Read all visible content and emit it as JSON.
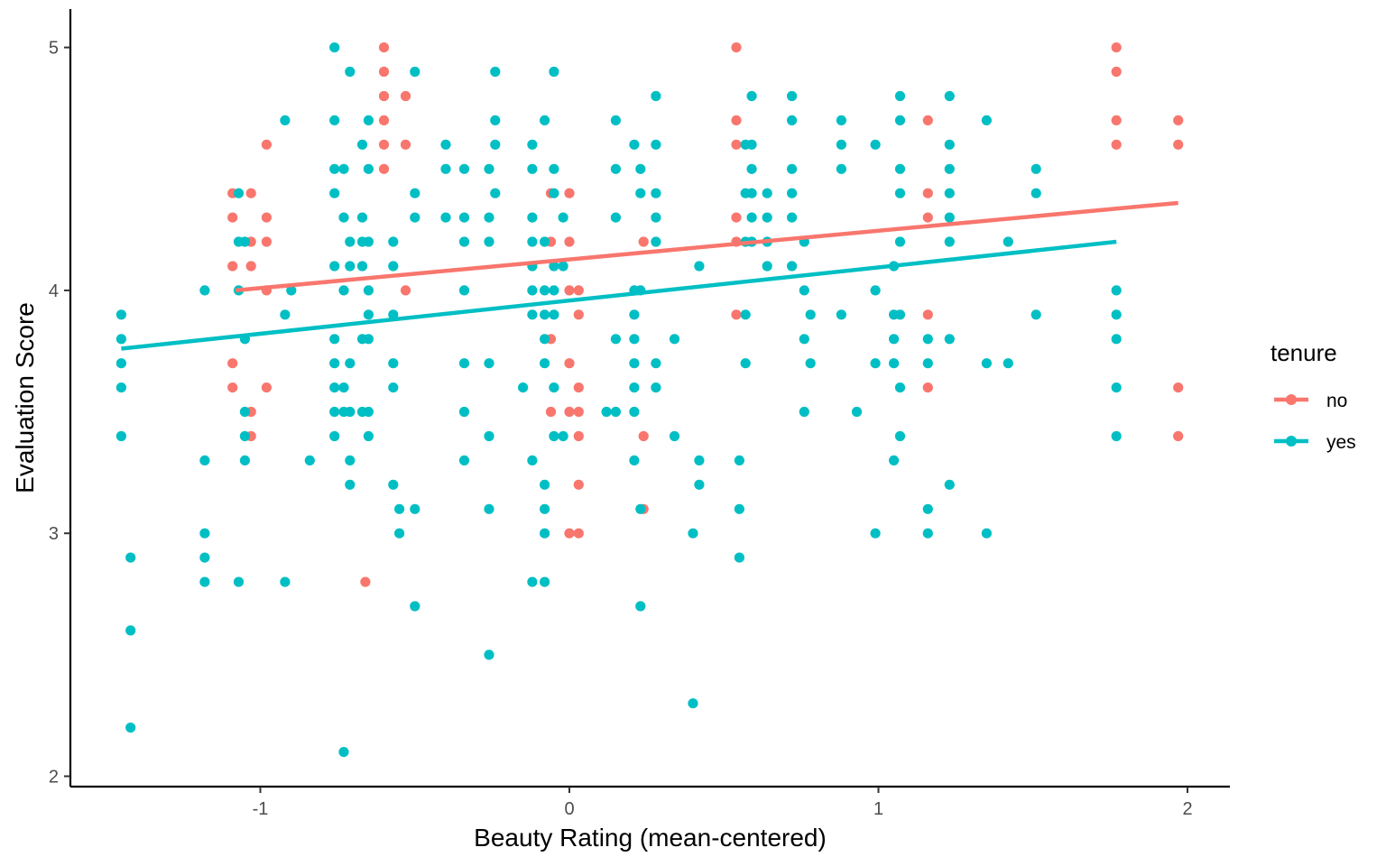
{
  "chart_data": {
    "type": "scatter",
    "xlabel": "Beauty Rating (mean-centered)",
    "ylabel": "Evaluation Score",
    "xlim": [
      -1.6,
      2.15
    ],
    "ylim": [
      1.97,
      5.15
    ],
    "xticks": [
      -1,
      0,
      1,
      2
    ],
    "yticks": [
      2,
      3,
      4,
      5
    ],
    "grid": false,
    "legend": {
      "title": "tenure",
      "position": "right"
    },
    "colors": {
      "no": "#F8766D",
      "yes": "#00BFC4"
    },
    "series": [
      {
        "name": "no",
        "color": "#F8766D",
        "points": [
          [
            -1.09,
            4.4
          ],
          [
            -1.09,
            4.3
          ],
          [
            -1.09,
            4.1
          ],
          [
            -1.09,
            3.7
          ],
          [
            -1.09,
            3.6
          ],
          [
            -1.03,
            4.4
          ],
          [
            -1.03,
            4.2
          ],
          [
            -1.03,
            4.1
          ],
          [
            -1.03,
            3.5
          ],
          [
            -1.03,
            3.4
          ],
          [
            -0.98,
            4.6
          ],
          [
            -0.98,
            4.3
          ],
          [
            -0.98,
            4.2
          ],
          [
            -0.98,
            4.0
          ],
          [
            -0.98,
            3.6
          ],
          [
            -0.66,
            2.8
          ],
          [
            -0.6,
            5.0
          ],
          [
            -0.6,
            4.9
          ],
          [
            -0.6,
            4.8
          ],
          [
            -0.6,
            4.7
          ],
          [
            -0.6,
            4.6
          ],
          [
            -0.6,
            4.5
          ],
          [
            -0.53,
            4.8
          ],
          [
            -0.53,
            4.6
          ],
          [
            -0.53,
            4.0
          ],
          [
            -0.06,
            4.4
          ],
          [
            -0.06,
            4.2
          ],
          [
            -0.06,
            3.8
          ],
          [
            -0.06,
            3.5
          ],
          [
            0.0,
            4.4
          ],
          [
            0.0,
            4.2
          ],
          [
            0.0,
            4.0
          ],
          [
            0.0,
            3.7
          ],
          [
            0.0,
            3.5
          ],
          [
            0.0,
            3.0
          ],
          [
            0.03,
            4.0
          ],
          [
            0.03,
            3.9
          ],
          [
            0.03,
            3.6
          ],
          [
            0.03,
            3.5
          ],
          [
            0.03,
            3.4
          ],
          [
            0.03,
            3.2
          ],
          [
            0.03,
            3.0
          ],
          [
            0.24,
            4.2
          ],
          [
            0.24,
            3.4
          ],
          [
            0.24,
            3.1
          ],
          [
            0.54,
            5.0
          ],
          [
            0.54,
            4.7
          ],
          [
            0.54,
            4.6
          ],
          [
            0.54,
            4.3
          ],
          [
            0.54,
            4.2
          ],
          [
            0.54,
            3.9
          ],
          [
            1.16,
            4.7
          ],
          [
            1.16,
            4.4
          ],
          [
            1.16,
            4.3
          ],
          [
            1.16,
            3.9
          ],
          [
            1.16,
            3.6
          ],
          [
            1.77,
            5.0
          ],
          [
            1.77,
            4.9
          ],
          [
            1.77,
            4.7
          ],
          [
            1.77,
            4.6
          ],
          [
            1.97,
            4.7
          ],
          [
            1.97,
            4.6
          ],
          [
            1.97,
            3.6
          ],
          [
            1.97,
            3.4
          ]
        ],
        "fit": [
          [
            -1.08,
            4.0
          ],
          [
            1.97,
            4.36
          ]
        ]
      },
      {
        "name": "yes",
        "color": "#00BFC4",
        "points": [
          [
            -1.45,
            3.9
          ],
          [
            -1.45,
            3.8
          ],
          [
            -1.45,
            3.7
          ],
          [
            -1.45,
            3.6
          ],
          [
            -1.45,
            3.4
          ],
          [
            -1.42,
            2.9
          ],
          [
            -1.42,
            2.6
          ],
          [
            -1.42,
            2.2
          ],
          [
            -1.18,
            4.0
          ],
          [
            -1.18,
            3.3
          ],
          [
            -1.18,
            3.0
          ],
          [
            -1.18,
            2.9
          ],
          [
            -1.18,
            2.8
          ],
          [
            -1.07,
            4.4
          ],
          [
            -1.07,
            4.2
          ],
          [
            -1.07,
            4.0
          ],
          [
            -1.07,
            2.8
          ],
          [
            -1.05,
            4.2
          ],
          [
            -1.05,
            3.8
          ],
          [
            -1.05,
            3.5
          ],
          [
            -1.05,
            3.4
          ],
          [
            -1.05,
            3.3
          ],
          [
            -0.92,
            4.7
          ],
          [
            -0.92,
            3.9
          ],
          [
            -0.92,
            2.8
          ],
          [
            -0.9,
            4.0
          ],
          [
            -0.84,
            3.3
          ],
          [
            -0.76,
            5.0
          ],
          [
            -0.76,
            4.7
          ],
          [
            -0.76,
            4.5
          ],
          [
            -0.76,
            4.4
          ],
          [
            -0.76,
            4.1
          ],
          [
            -0.76,
            3.8
          ],
          [
            -0.76,
            3.7
          ],
          [
            -0.76,
            3.6
          ],
          [
            -0.76,
            3.5
          ],
          [
            -0.76,
            3.4
          ],
          [
            -0.73,
            4.5
          ],
          [
            -0.73,
            4.3
          ],
          [
            -0.73,
            4.0
          ],
          [
            -0.73,
            3.6
          ],
          [
            -0.73,
            3.5
          ],
          [
            -0.73,
            2.1
          ],
          [
            -0.71,
            4.9
          ],
          [
            -0.71,
            4.2
          ],
          [
            -0.71,
            4.1
          ],
          [
            -0.71,
            3.7
          ],
          [
            -0.71,
            3.5
          ],
          [
            -0.71,
            3.3
          ],
          [
            -0.71,
            3.2
          ],
          [
            -0.67,
            4.6
          ],
          [
            -0.67,
            4.3
          ],
          [
            -0.67,
            4.2
          ],
          [
            -0.67,
            4.1
          ],
          [
            -0.67,
            3.8
          ],
          [
            -0.67,
            3.5
          ],
          [
            -0.65,
            4.7
          ],
          [
            -0.65,
            4.5
          ],
          [
            -0.65,
            4.2
          ],
          [
            -0.65,
            4.0
          ],
          [
            -0.65,
            3.9
          ],
          [
            -0.65,
            3.8
          ],
          [
            -0.65,
            3.5
          ],
          [
            -0.65,
            3.4
          ],
          [
            -0.57,
            4.2
          ],
          [
            -0.57,
            4.1
          ],
          [
            -0.57,
            3.9
          ],
          [
            -0.57,
            3.7
          ],
          [
            -0.57,
            3.6
          ],
          [
            -0.57,
            3.2
          ],
          [
            -0.55,
            3.0
          ],
          [
            -0.55,
            3.1
          ],
          [
            -0.5,
            4.9
          ],
          [
            -0.5,
            4.4
          ],
          [
            -0.5,
            4.3
          ],
          [
            -0.5,
            3.1
          ],
          [
            -0.5,
            2.7
          ],
          [
            -0.4,
            4.6
          ],
          [
            -0.4,
            4.5
          ],
          [
            -0.4,
            4.3
          ],
          [
            -0.34,
            4.5
          ],
          [
            -0.34,
            4.3
          ],
          [
            -0.34,
            4.2
          ],
          [
            -0.34,
            4.0
          ],
          [
            -0.34,
            3.7
          ],
          [
            -0.34,
            3.5
          ],
          [
            -0.34,
            3.3
          ],
          [
            -0.26,
            4.5
          ],
          [
            -0.26,
            4.3
          ],
          [
            -0.26,
            4.2
          ],
          [
            -0.26,
            3.7
          ],
          [
            -0.26,
            3.4
          ],
          [
            -0.26,
            3.1
          ],
          [
            -0.26,
            2.5
          ],
          [
            -0.24,
            4.9
          ],
          [
            -0.24,
            4.7
          ],
          [
            -0.24,
            4.6
          ],
          [
            -0.24,
            4.4
          ],
          [
            -0.15,
            3.6
          ],
          [
            -0.12,
            4.6
          ],
          [
            -0.12,
            4.5
          ],
          [
            -0.12,
            4.3
          ],
          [
            -0.12,
            4.2
          ],
          [
            -0.12,
            4.1
          ],
          [
            -0.12,
            4.0
          ],
          [
            -0.12,
            3.9
          ],
          [
            -0.12,
            3.3
          ],
          [
            -0.12,
            2.8
          ],
          [
            -0.08,
            4.7
          ],
          [
            -0.08,
            4.2
          ],
          [
            -0.08,
            4.0
          ],
          [
            -0.08,
            3.9
          ],
          [
            -0.08,
            3.8
          ],
          [
            -0.08,
            3.7
          ],
          [
            -0.08,
            3.2
          ],
          [
            -0.08,
            3.1
          ],
          [
            -0.08,
            3.0
          ],
          [
            -0.08,
            2.8
          ],
          [
            -0.05,
            4.9
          ],
          [
            -0.05,
            4.5
          ],
          [
            -0.05,
            4.4
          ],
          [
            -0.05,
            4.1
          ],
          [
            -0.05,
            4.0
          ],
          [
            -0.05,
            3.9
          ],
          [
            -0.05,
            3.6
          ],
          [
            -0.05,
            3.4
          ],
          [
            -0.02,
            4.3
          ],
          [
            -0.02,
            4.1
          ],
          [
            -0.02,
            3.4
          ],
          [
            0.15,
            4.7
          ],
          [
            0.15,
            4.5
          ],
          [
            0.15,
            4.3
          ],
          [
            0.15,
            3.8
          ],
          [
            0.15,
            3.5
          ],
          [
            0.12,
            3.5
          ],
          [
            0.21,
            4.6
          ],
          [
            0.21,
            4.0
          ],
          [
            0.21,
            3.9
          ],
          [
            0.21,
            3.8
          ],
          [
            0.21,
            3.7
          ],
          [
            0.21,
            3.6
          ],
          [
            0.21,
            3.5
          ],
          [
            0.21,
            3.3
          ],
          [
            0.23,
            4.5
          ],
          [
            0.23,
            4.4
          ],
          [
            0.23,
            4.0
          ],
          [
            0.23,
            3.1
          ],
          [
            0.23,
            2.7
          ],
          [
            0.28,
            4.8
          ],
          [
            0.28,
            4.6
          ],
          [
            0.28,
            4.4
          ],
          [
            0.28,
            4.3
          ],
          [
            0.28,
            4.2
          ],
          [
            0.28,
            3.7
          ],
          [
            0.28,
            3.6
          ],
          [
            0.34,
            3.8
          ],
          [
            0.34,
            3.4
          ],
          [
            0.4,
            3.0
          ],
          [
            0.4,
            2.3
          ],
          [
            0.42,
            4.1
          ],
          [
            0.42,
            3.3
          ],
          [
            0.42,
            3.2
          ],
          [
            0.55,
            3.3
          ],
          [
            0.55,
            3.1
          ],
          [
            0.55,
            2.9
          ],
          [
            0.57,
            4.6
          ],
          [
            0.57,
            4.4
          ],
          [
            0.57,
            4.2
          ],
          [
            0.57,
            3.9
          ],
          [
            0.57,
            3.7
          ],
          [
            0.59,
            4.8
          ],
          [
            0.59,
            4.6
          ],
          [
            0.59,
            4.5
          ],
          [
            0.59,
            4.4
          ],
          [
            0.59,
            4.3
          ],
          [
            0.59,
            4.2
          ],
          [
            0.64,
            4.4
          ],
          [
            0.64,
            4.3
          ],
          [
            0.64,
            4.2
          ],
          [
            0.64,
            4.1
          ],
          [
            0.72,
            4.8
          ],
          [
            0.72,
            4.7
          ],
          [
            0.72,
            4.5
          ],
          [
            0.72,
            4.4
          ],
          [
            0.72,
            4.3
          ],
          [
            0.72,
            4.1
          ],
          [
            0.76,
            4.2
          ],
          [
            0.76,
            4.0
          ],
          [
            0.76,
            3.8
          ],
          [
            0.76,
            3.5
          ],
          [
            0.78,
            3.9
          ],
          [
            0.78,
            3.7
          ],
          [
            0.88,
            4.7
          ],
          [
            0.88,
            4.6
          ],
          [
            0.88,
            4.5
          ],
          [
            0.88,
            3.9
          ],
          [
            0.93,
            3.5
          ],
          [
            0.99,
            4.6
          ],
          [
            0.99,
            4.0
          ],
          [
            0.99,
            3.7
          ],
          [
            0.99,
            3.0
          ],
          [
            1.05,
            4.1
          ],
          [
            1.05,
            3.9
          ],
          [
            1.05,
            3.8
          ],
          [
            1.05,
            3.7
          ],
          [
            1.05,
            3.3
          ],
          [
            1.07,
            4.8
          ],
          [
            1.07,
            4.7
          ],
          [
            1.07,
            4.5
          ],
          [
            1.07,
            4.4
          ],
          [
            1.07,
            4.2
          ],
          [
            1.07,
            3.9
          ],
          [
            1.07,
            3.6
          ],
          [
            1.07,
            3.4
          ],
          [
            1.16,
            3.8
          ],
          [
            1.16,
            3.7
          ],
          [
            1.16,
            3.1
          ],
          [
            1.16,
            3.0
          ],
          [
            1.23,
            4.8
          ],
          [
            1.23,
            4.6
          ],
          [
            1.23,
            4.5
          ],
          [
            1.23,
            4.4
          ],
          [
            1.23,
            4.3
          ],
          [
            1.23,
            4.2
          ],
          [
            1.23,
            3.8
          ],
          [
            1.23,
            3.2
          ],
          [
            1.35,
            4.7
          ],
          [
            1.35,
            3.7
          ],
          [
            1.35,
            3.0
          ],
          [
            1.42,
            4.2
          ],
          [
            1.42,
            3.7
          ],
          [
            1.51,
            4.5
          ],
          [
            1.51,
            4.4
          ],
          [
            1.51,
            3.9
          ],
          [
            1.77,
            4.0
          ],
          [
            1.77,
            3.9
          ],
          [
            1.77,
            3.8
          ],
          [
            1.77,
            3.6
          ],
          [
            1.77,
            3.4
          ]
        ],
        "fit": [
          [
            -1.45,
            3.76
          ],
          [
            1.77,
            4.2
          ]
        ]
      }
    ]
  }
}
